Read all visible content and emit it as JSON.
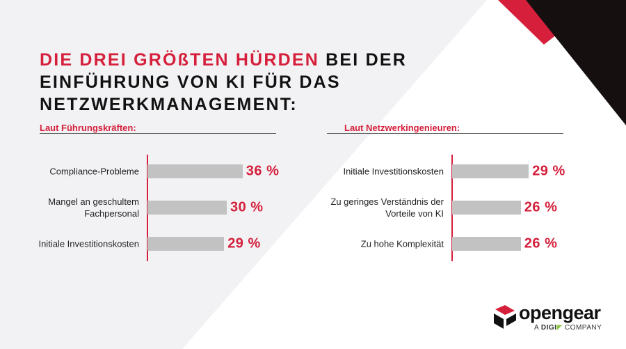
{
  "title_highlight": "DIE DREI GRÖßTEN HÜRDEN",
  "title_rest": "BEI DER EINFÜHRUNG VON KI FÜR DAS NETZWERKMANAGEMENT:",
  "chart_data": [
    {
      "type": "bar",
      "title": "Laut Führungskräften:",
      "categories": [
        "Compliance-Probleme",
        "Mangel an geschultem Fachpersonal",
        "Initiale Investitionskosten"
      ],
      "values": [
        36,
        30,
        29
      ],
      "value_labels": [
        "36 %",
        "30 %",
        "29 %"
      ],
      "color": "#c2c2c2"
    },
    {
      "type": "bar",
      "title": "Laut Netzwerkingenieuren:",
      "categories": [
        "Initiale Investitionskosten",
        "Zu geringes Verständnis der Vorteile von KI",
        "Zu hohe Komplexität"
      ],
      "values": [
        29,
        26,
        26
      ],
      "value_labels": [
        "29 %",
        "26 %",
        "26 %"
      ],
      "color": "#c2c2c2"
    }
  ],
  "logo": {
    "name": "opengear",
    "prefix": "A",
    "brand": "DIGI",
    "suffix": "COMPANY"
  }
}
